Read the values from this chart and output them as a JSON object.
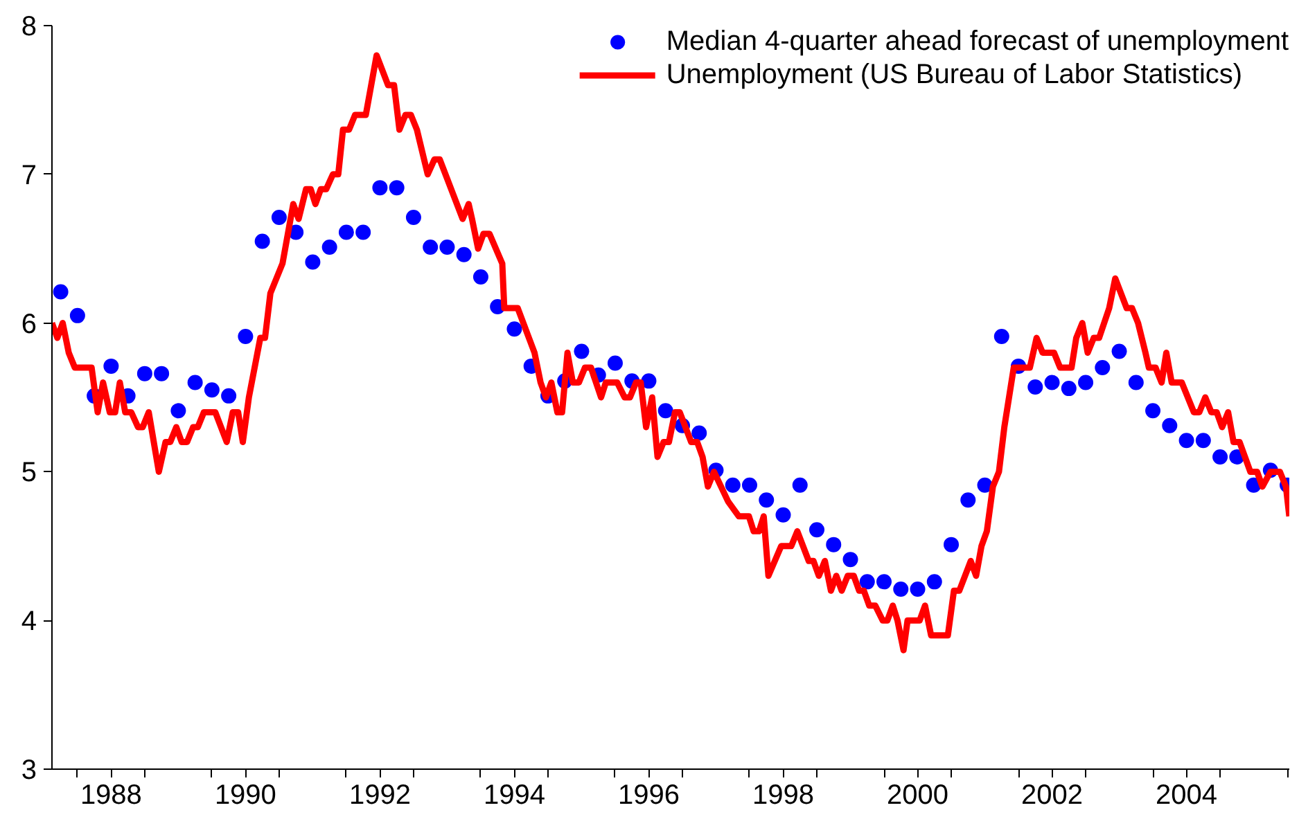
{
  "chart_data": {
    "type": "line",
    "xlim": [
      1987.62,
      2006.03
    ],
    "ylim": [
      3,
      8
    ],
    "yticks": [
      3,
      4,
      5,
      6,
      7,
      8
    ],
    "xticks": [
      {
        "value": 1988,
        "label": null
      },
      {
        "value": 1988.5,
        "label": "1988"
      },
      {
        "value": 1989,
        "label": null
      },
      {
        "value": 1990,
        "label": null
      },
      {
        "value": 1990.5,
        "label": "1990"
      },
      {
        "value": 1991,
        "label": null
      },
      {
        "value": 1992,
        "label": null
      },
      {
        "value": 1992.5,
        "label": "1992"
      },
      {
        "value": 1993,
        "label": null
      },
      {
        "value": 1994,
        "label": null
      },
      {
        "value": 1994.5,
        "label": "1994"
      },
      {
        "value": 1995,
        "label": null
      },
      {
        "value": 1996,
        "label": null
      },
      {
        "value": 1996.5,
        "label": "1996"
      },
      {
        "value": 1997,
        "label": null
      },
      {
        "value": 1998,
        "label": null
      },
      {
        "value": 1998.5,
        "label": "1998"
      },
      {
        "value": 1999,
        "label": null
      },
      {
        "value": 2000,
        "label": null
      },
      {
        "value": 2000.5,
        "label": "2000"
      },
      {
        "value": 2001,
        "label": null
      },
      {
        "value": 2002,
        "label": null
      },
      {
        "value": 2002.5,
        "label": "2002"
      },
      {
        "value": 2003,
        "label": null
      },
      {
        "value": 2004,
        "label": null
      },
      {
        "value": 2004.5,
        "label": "2004"
      },
      {
        "value": 2005,
        "label": null
      },
      {
        "value": 2006,
        "label": null
      }
    ],
    "grid": false,
    "legend": "top right",
    "line_style": "solid",
    "series": [
      {
        "name": "Median 4-quarter ahead forecast of unemployment",
        "type": "scatter",
        "marker": "circle",
        "color": "#0000ff",
        "x": [
          1987.75,
          1988.0,
          1988.25,
          1988.5,
          1988.75,
          1989.0,
          1989.25,
          1989.5,
          1989.75,
          1990.0,
          1990.25,
          1990.5,
          1990.75,
          1991.0,
          1991.25,
          1991.5,
          1991.75,
          1992.0,
          1992.25,
          1992.5,
          1992.75,
          1993.0,
          1993.25,
          1993.5,
          1993.75,
          1994.0,
          1994.25,
          1994.5,
          1994.75,
          1995.0,
          1995.25,
          1995.5,
          1995.75,
          1996.0,
          1996.25,
          1996.5,
          1996.75,
          1997.0,
          1997.25,
          1997.5,
          1997.75,
          1998.0,
          1998.25,
          1998.5,
          1998.75,
          1999.0,
          1999.25,
          1999.5,
          1999.75,
          2000.0,
          2000.25,
          2000.5,
          2000.75,
          2001.0,
          2001.25,
          2001.5,
          2001.75,
          2002.0,
          2002.25,
          2002.5,
          2002.75,
          2003.0,
          2003.25,
          2003.5,
          2003.75,
          2004.0,
          2004.25,
          2004.5,
          2004.75,
          2005.0,
          2005.25,
          2005.5,
          2005.75,
          2006.0
        ],
        "values": [
          6.21,
          6.05,
          5.51,
          5.71,
          5.51,
          5.66,
          5.66,
          5.41,
          5.6,
          5.55,
          5.51,
          5.91,
          6.55,
          6.71,
          6.61,
          6.41,
          6.51,
          6.61,
          6.61,
          6.91,
          6.91,
          6.71,
          6.51,
          6.51,
          6.46,
          6.31,
          6.11,
          5.96,
          5.71,
          5.51,
          5.61,
          5.81,
          5.65,
          5.73,
          5.61,
          5.61,
          5.41,
          5.31,
          5.26,
          5.01,
          4.91,
          4.91,
          4.81,
          4.71,
          4.91,
          4.61,
          4.51,
          4.41,
          4.26,
          4.26,
          4.21,
          4.21,
          4.26,
          4.51,
          4.81,
          4.91,
          5.91,
          5.71,
          5.57,
          5.6,
          5.56,
          5.6,
          5.7,
          5.81,
          5.6,
          5.41,
          5.31,
          5.21,
          5.21,
          5.1,
          5.1,
          4.91,
          5.01,
          4.91
        ]
      },
      {
        "name": "Unemployment (US Bureau of Labor Statistics)",
        "color": "#ff0000",
        "x": [
          1987.62,
          1987.7,
          1987.78,
          1987.87,
          1987.96,
          1988.21,
          1988.3,
          1988.38,
          1988.48,
          1988.56,
          1988.63,
          1988.71,
          1988.8,
          1988.9,
          1988.97,
          1989.06,
          1989.21,
          1989.31,
          1989.38,
          1989.47,
          1989.55,
          1989.63,
          1989.72,
          1989.79,
          1989.88,
          1990.05,
          1990.22,
          1990.31,
          1990.39,
          1990.46,
          1990.55,
          1990.72,
          1990.79,
          1990.87,
          1991.05,
          1991.13,
          1991.21,
          1991.29,
          1991.4,
          1991.47,
          1991.54,
          1991.62,
          1991.7,
          1991.8,
          1991.88,
          1991.95,
          1992.04,
          1992.13,
          1992.29,
          1992.45,
          1992.62,
          1992.71,
          1992.79,
          1992.88,
          1992.96,
          1993.05,
          1993.21,
          1993.31,
          1993.39,
          1993.73,
          1993.82,
          1993.87,
          1993.96,
          1994.04,
          1994.13,
          1994.32,
          1994.35,
          1994.55,
          1994.8,
          1994.89,
          1994.97,
          1995.05,
          1995.14,
          1995.21,
          1995.29,
          1995.37,
          1995.46,
          1995.55,
          1995.64,
          1995.79,
          1995.86,
          1996.03,
          1996.14,
          1996.22,
          1996.31,
          1996.38,
          1996.46,
          1996.55,
          1996.63,
          1996.72,
          1996.8,
          1996.89,
          1996.96,
          1997.13,
          1997.22,
          1997.3,
          1997.38,
          1997.47,
          1997.68,
          1997.84,
          1997.99,
          1998.06,
          1998.14,
          1998.21,
          1998.28,
          1998.47,
          1998.62,
          1998.71,
          1998.88,
          1998.95,
          1999.03,
          1999.12,
          1999.21,
          1999.29,
          1999.37,
          1999.46,
          1999.55,
          1999.63,
          1999.7,
          1999.78,
          1999.87,
          1999.98,
          2000.05,
          2000.13,
          2000.2,
          2000.29,
          2000.35,
          2000.53,
          2000.61,
          2000.7,
          2000.95,
          2001.04,
          2001.12,
          2001.29,
          2001.37,
          2001.45,
          2001.53,
          2001.62,
          2001.71,
          2001.79,
          2001.93,
          2002.17,
          2002.27,
          2002.36,
          2002.53,
          2002.62,
          2002.79,
          2002.86,
          2002.95,
          2003.03,
          2003.12,
          2003.2,
          2003.35,
          2003.44,
          2003.61,
          2003.69,
          2003.78,
          2003.89,
          2003.94,
          2004.04,
          2004.13,
          2004.2,
          2004.28,
          2004.43,
          2004.61,
          2004.69,
          2004.78,
          2004.87,
          2004.95,
          2005.03,
          2005.12,
          2005.2,
          2005.29,
          2005.45,
          2005.55,
          2005.63,
          2005.75,
          2005.89,
          2005.98,
          2006.03
        ],
        "values": [
          6.0,
          5.9,
          6.0,
          5.8,
          5.7,
          5.7,
          5.4,
          5.6,
          5.4,
          5.4,
          5.6,
          5.4,
          5.4,
          5.3,
          5.3,
          5.4,
          5.0,
          5.2,
          5.2,
          5.3,
          5.2,
          5.2,
          5.3,
          5.3,
          5.4,
          5.4,
          5.2,
          5.4,
          5.4,
          5.2,
          5.5,
          5.9,
          5.9,
          6.2,
          6.4,
          6.6,
          6.8,
          6.7,
          6.9,
          6.9,
          6.8,
          6.9,
          6.9,
          7.0,
          7.0,
          7.3,
          7.3,
          7.4,
          7.4,
          7.8,
          7.6,
          7.6,
          7.3,
          7.4,
          7.4,
          7.3,
          7.0,
          7.1,
          7.1,
          6.7,
          6.8,
          6.7,
          6.5,
          6.6,
          6.6,
          6.4,
          6.1,
          6.1,
          5.8,
          5.6,
          5.5,
          5.6,
          5.4,
          5.4,
          5.8,
          5.6,
          5.6,
          5.7,
          5.7,
          5.5,
          5.6,
          5.6,
          5.5,
          5.5,
          5.6,
          5.6,
          5.3,
          5.5,
          5.1,
          5.2,
          5.2,
          5.4,
          5.4,
          5.2,
          5.2,
          5.1,
          4.9,
          5.0,
          4.8,
          4.7,
          4.7,
          4.6,
          4.6,
          4.7,
          4.3,
          4.5,
          4.5,
          4.6,
          4.4,
          4.4,
          4.3,
          4.4,
          4.2,
          4.3,
          4.2,
          4.3,
          4.3,
          4.2,
          4.2,
          4.1,
          4.1,
          4.0,
          4.0,
          4.1,
          4.0,
          3.8,
          4.0,
          4.0,
          4.1,
          3.9,
          3.9,
          4.2,
          4.2,
          4.4,
          4.3,
          4.5,
          4.6,
          4.9,
          5.0,
          5.3,
          5.7,
          5.7,
          5.9,
          5.8,
          5.8,
          5.7,
          5.7,
          5.9,
          6.0,
          5.8,
          5.9,
          5.9,
          6.1,
          6.3,
          6.1,
          6.1,
          6.0,
          5.8,
          5.7,
          5.7,
          5.6,
          5.8,
          5.6,
          5.6,
          5.4,
          5.4,
          5.5,
          5.4,
          5.4,
          5.3,
          5.4,
          5.2,
          5.2,
          5.0,
          5.0,
          4.9,
          5.0,
          5.0,
          4.9,
          4.7
        ]
      }
    ]
  }
}
